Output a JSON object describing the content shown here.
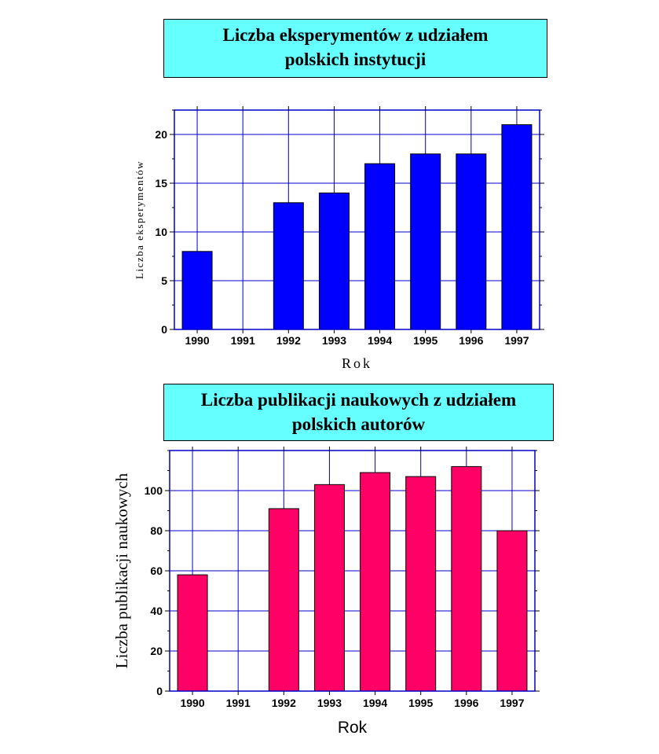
{
  "charts": {
    "experiments": {
      "title_line1": "Liczba eksperymentów z udziałem",
      "title_line2": "polskich instytucji"
    },
    "publications": {
      "title_line1": "Liczba publikacji naukowych z udziałem",
      "title_line2": "polskich autorów"
    }
  },
  "chart_data": [
    {
      "type": "bar",
      "title": "Liczba eksperymentów z udziałem polskich instytucji",
      "categories": [
        "1990",
        "1991",
        "1992",
        "1993",
        "1994",
        "1995",
        "1996",
        "1997"
      ],
      "values": [
        8,
        0,
        13,
        14,
        17,
        18,
        18,
        21
      ],
      "xlabel": "Rok",
      "ylabel": "Liczba eksperymentów",
      "ylim": [
        0,
        22.5
      ],
      "yticks": [
        0,
        5,
        10,
        15,
        20
      ],
      "grid": true,
      "bar_color": "#0000ff"
    },
    {
      "type": "bar",
      "title": "Liczba publikacji naukowych z udziałem polskich autorów",
      "categories": [
        "1990",
        "1991",
        "1992",
        "1993",
        "1994",
        "1995",
        "1996",
        "1997"
      ],
      "values": [
        58,
        0,
        91,
        103,
        109,
        107,
        112,
        80
      ],
      "xlabel": "Rok",
      "ylabel": "Liczba publikacji naukowych",
      "ylim": [
        0,
        120
      ],
      "yticks": [
        0,
        20,
        40,
        60,
        80,
        100
      ],
      "grid": true,
      "bar_color": "#ff0066"
    }
  ]
}
